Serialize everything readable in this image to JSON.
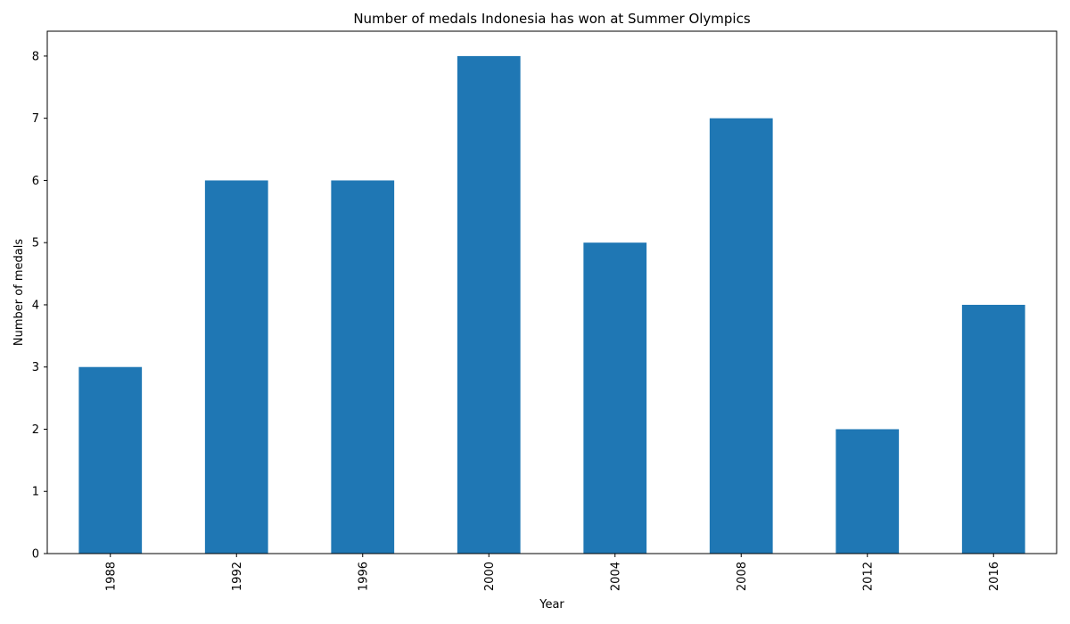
{
  "chart_data": {
    "type": "bar",
    "title": "Number of medals Indonesia has won at Summer Olympics",
    "xlabel": "Year",
    "ylabel": "Number of medals",
    "categories": [
      "1988",
      "1992",
      "1996",
      "2000",
      "2004",
      "2008",
      "2012",
      "2016"
    ],
    "values": [
      3,
      6,
      6,
      8,
      5,
      7,
      2,
      4
    ],
    "ylim": [
      0,
      8.4
    ],
    "yticks": [
      0,
      1,
      2,
      3,
      4,
      5,
      6,
      7,
      8
    ],
    "grid": false,
    "bar_color": "#1f77b4"
  }
}
